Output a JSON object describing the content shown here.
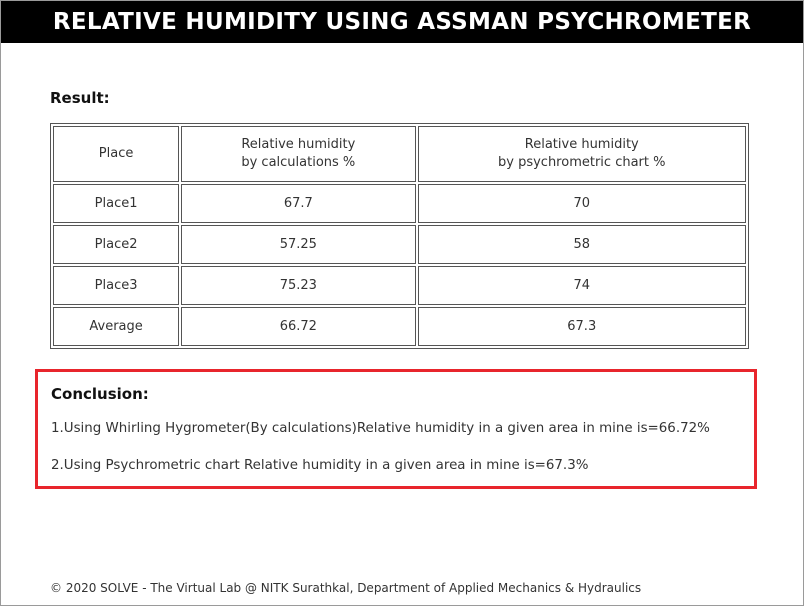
{
  "page": {
    "title": "RELATIVE HUMIDITY USING ASSMAN PSYCHROMETER"
  },
  "result": {
    "heading": "Result:",
    "headers": [
      "Place",
      "Relative humidity\nby calculations %",
      "Relative humidity\nby psychrometric chart %"
    ],
    "rows": [
      [
        "Place1",
        "67.7",
        "70"
      ],
      [
        "Place2",
        "57.25",
        "58"
      ],
      [
        "Place3",
        "75.23",
        "74"
      ],
      [
        "Average",
        "66.72",
        "67.3"
      ]
    ]
  },
  "conclusion": {
    "heading": "Conclusion:",
    "lines": [
      "1.Using Whirling Hygrometer(By calculations)Relative humidity in a given area in mine is=66.72%",
      "2.Using Psychrometric chart Relative humidity in a given area in mine is=67.3%"
    ]
  },
  "footer": {
    "text": "© 2020 SOLVE - The Virtual Lab @ NITK Surathkal, Department of Applied Mechanics & Hydraulics"
  }
}
